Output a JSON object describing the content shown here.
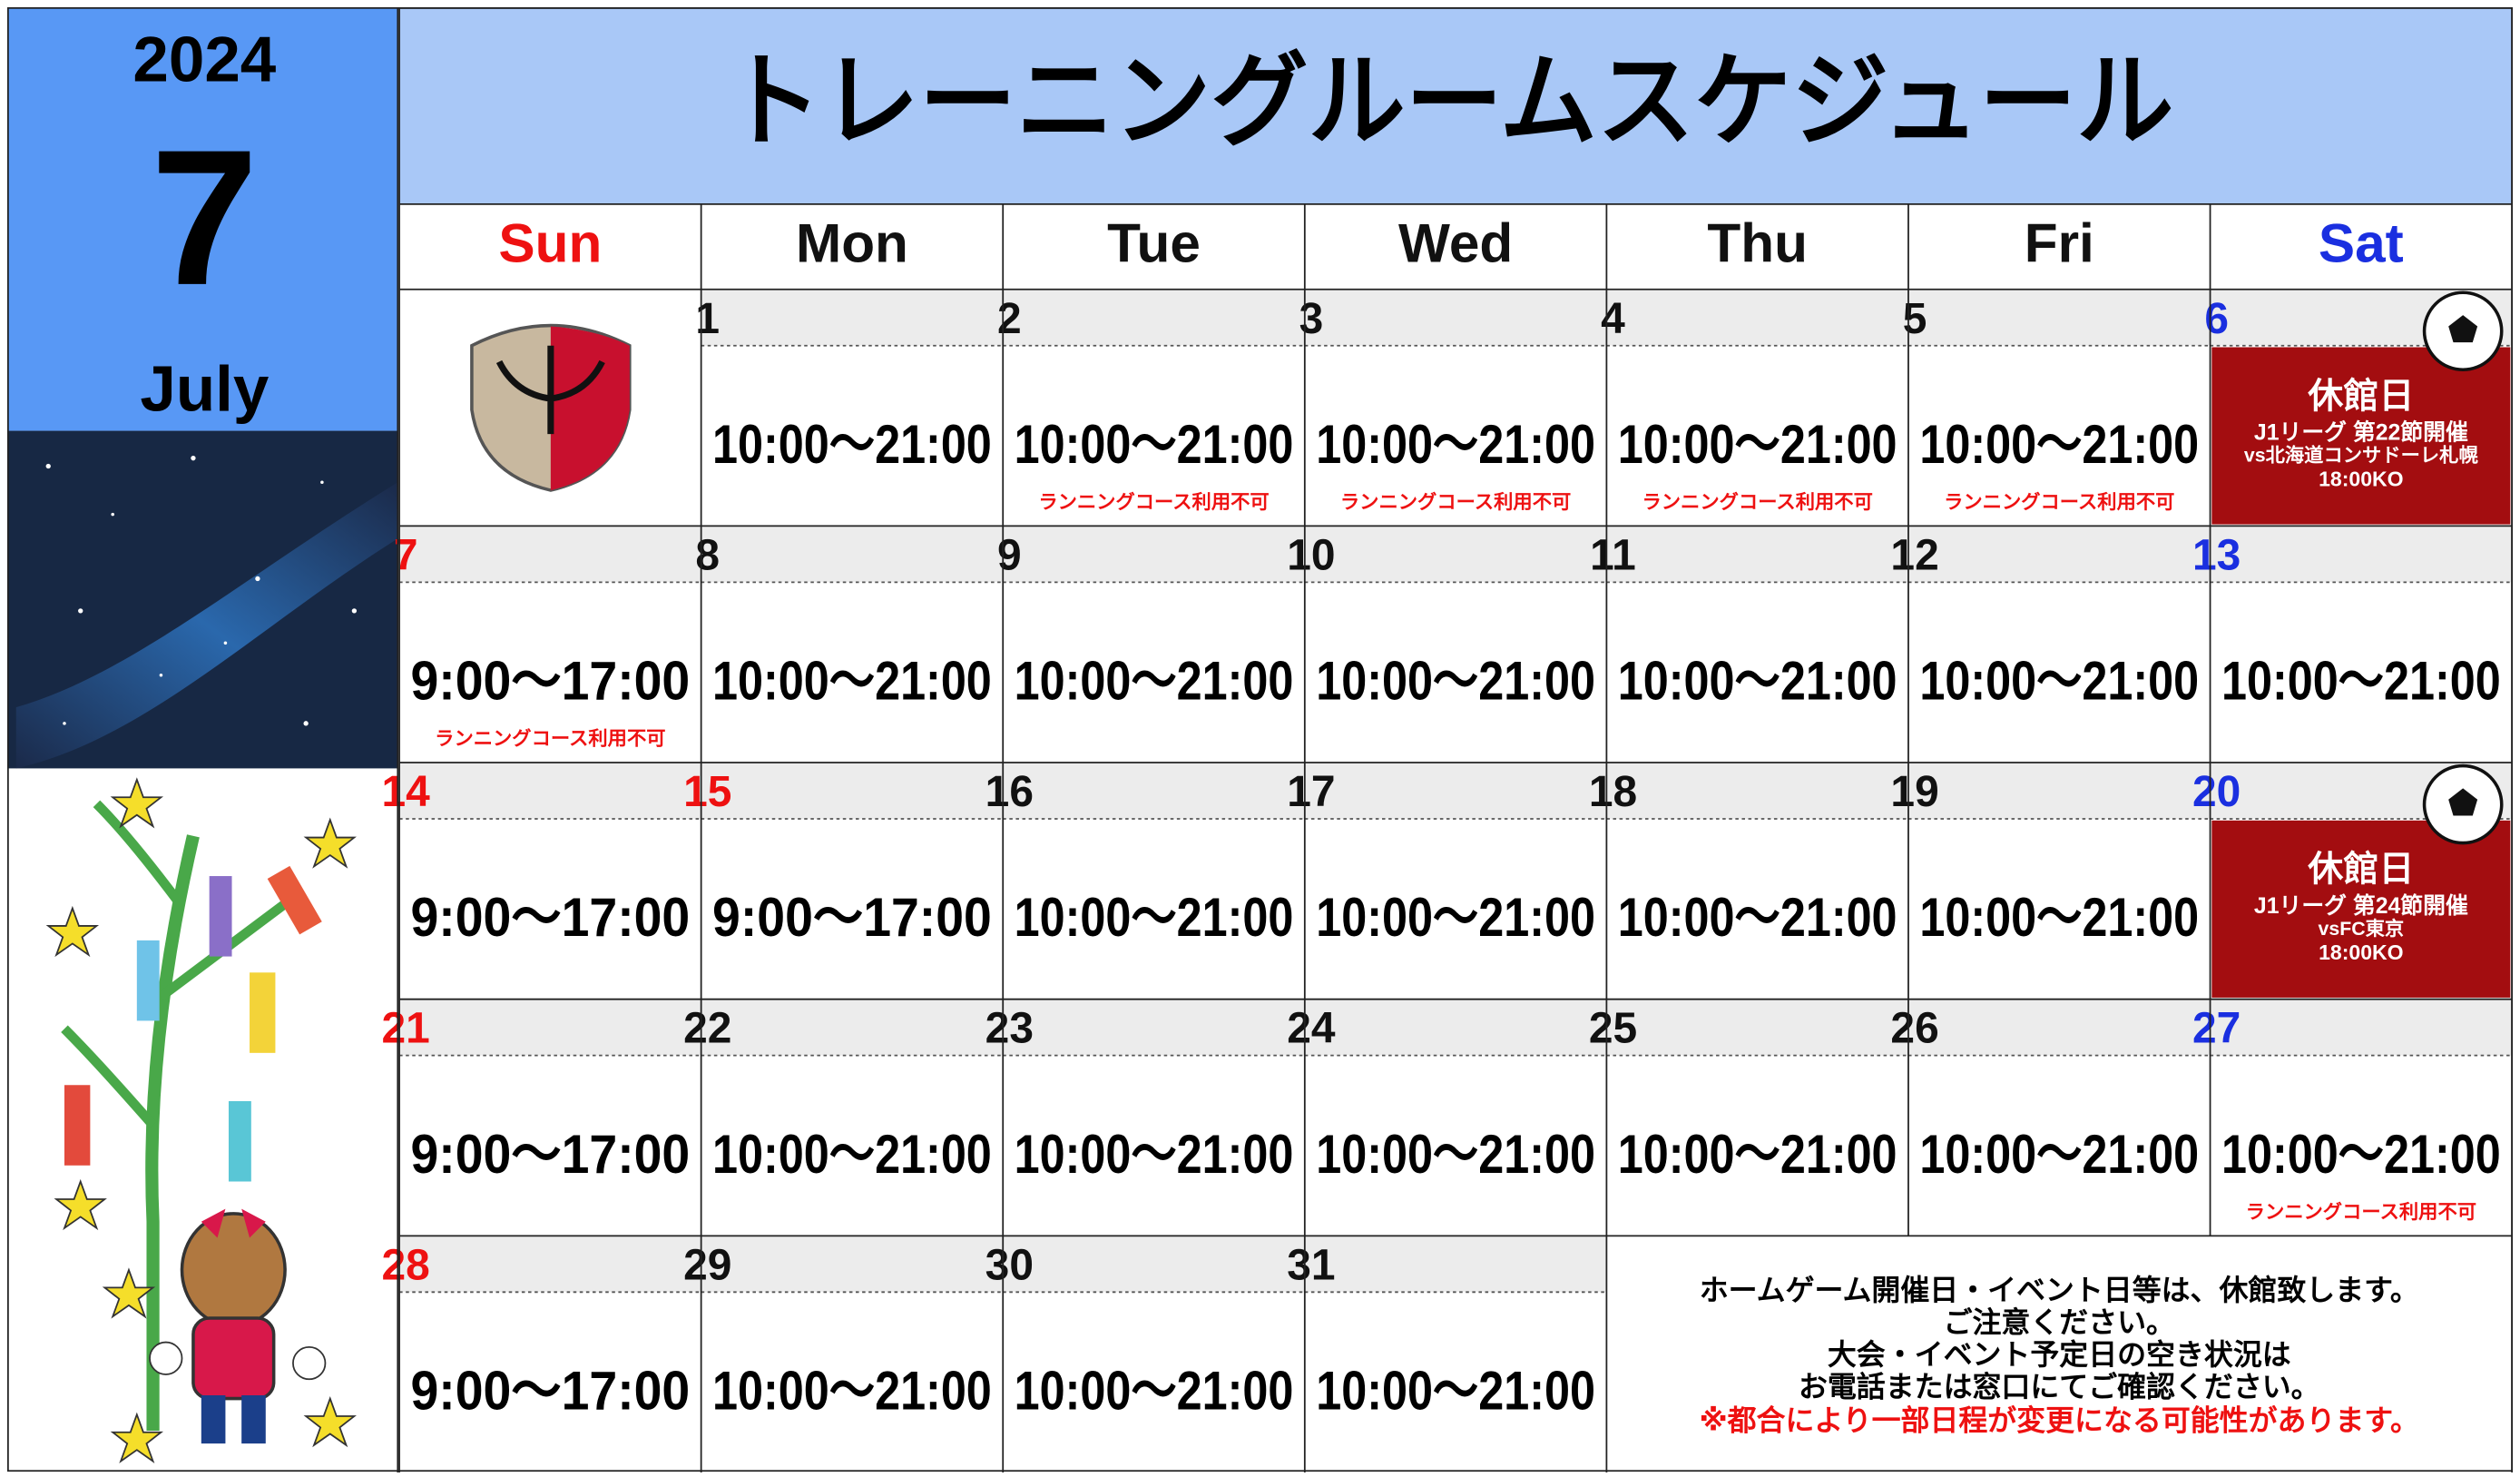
{
  "header": {
    "year": "2024",
    "month": "7",
    "month_name": "July",
    "title": "トレーニングルームスケジュール"
  },
  "weekdays": [
    "Sun",
    "Mon",
    "Tue",
    "Wed",
    "Thu",
    "Fri",
    "Sat"
  ],
  "days": [
    {
      "day": "1",
      "hours": "10:00～21:00"
    },
    {
      "day": "2",
      "hours": "10:00～21:00",
      "note": "ランニングコース利用不可"
    },
    {
      "day": "3",
      "hours": "10:00～21:00",
      "note": "ランニングコース利用不可"
    },
    {
      "day": "4",
      "hours": "10:00～21:00",
      "note": "ランニングコース利用不可"
    },
    {
      "day": "5",
      "hours": "10:00～21:00",
      "note": "ランニングコース利用不可"
    },
    {
      "day": "6",
      "closed": "休館日",
      "event": "J1リーグ 第22節開催",
      "opponent": "vs北海道コンサドーレ札幌",
      "kickoff": "18:00KO"
    },
    {
      "day": "7",
      "hours": "9:00～17:00",
      "note": "ランニングコース利用不可"
    },
    {
      "day": "8",
      "hours": "10:00～21:00"
    },
    {
      "day": "9",
      "hours": "10:00～21:00"
    },
    {
      "day": "10",
      "hours": "10:00～21:00"
    },
    {
      "day": "11",
      "hours": "10:00～21:00"
    },
    {
      "day": "12",
      "hours": "10:00～21:00"
    },
    {
      "day": "13",
      "hours": "10:00～21:00"
    },
    {
      "day": "14",
      "hours": "9:00～17:00"
    },
    {
      "day": "15",
      "hours": "9:00～17:00",
      "holiday": true
    },
    {
      "day": "16",
      "hours": "10:00～21:00"
    },
    {
      "day": "17",
      "hours": "10:00～21:00"
    },
    {
      "day": "18",
      "hours": "10:00～21:00"
    },
    {
      "day": "19",
      "hours": "10:00～21:00"
    },
    {
      "day": "20",
      "closed": "休館日",
      "event": "J1リーグ 第24節開催",
      "opponent": "vsFC東京",
      "kickoff": "18:00KO"
    },
    {
      "day": "21",
      "hours": "9:00～17:00"
    },
    {
      "day": "22",
      "hours": "10:00～21:00"
    },
    {
      "day": "23",
      "hours": "10:00～21:00"
    },
    {
      "day": "24",
      "hours": "10:00～21:00"
    },
    {
      "day": "25",
      "hours": "10:00～21:00"
    },
    {
      "day": "26",
      "hours": "10:00～21:00"
    },
    {
      "day": "27",
      "hours": "10:00～21:00",
      "note": "ランニングコース利用不可"
    },
    {
      "day": "28",
      "hours": "9:00～17:00"
    },
    {
      "day": "29",
      "hours": "10:00～21:00"
    },
    {
      "day": "30",
      "hours": "10:00～21:00"
    },
    {
      "day": "31",
      "hours": "10:00～21:00"
    }
  ],
  "footer": {
    "notice": [
      "ホームゲーム開催日・イベント日等は、休館致します。",
      "ご注意ください。",
      "大会・イベント予定日の空き状況は",
      "お電話または窓口にてご確認ください。"
    ],
    "warning": "※都合により一部日程が変更になる可能性があります。"
  }
}
